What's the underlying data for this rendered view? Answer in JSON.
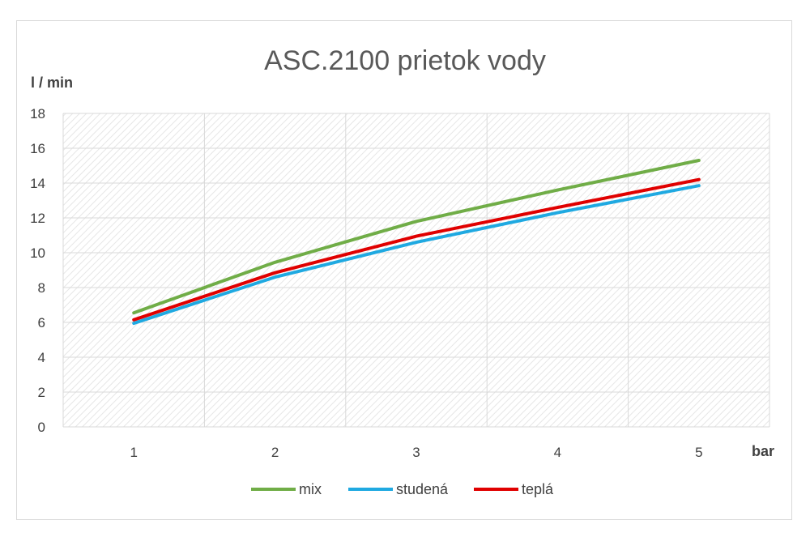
{
  "chart_data": {
    "type": "line",
    "title": "ASC.2100 prietok vody",
    "ylabel": "l / min",
    "xlabel": "bar",
    "categories": [
      "1",
      "2",
      "3",
      "4",
      "5"
    ],
    "ylim": [
      0,
      18
    ],
    "yticks": [
      "0",
      "2",
      "4",
      "6",
      "8",
      "10",
      "12",
      "14",
      "16",
      "18"
    ],
    "grid": true,
    "legend_position": "bottom",
    "series": [
      {
        "name": "mix",
        "color": "#70ad47",
        "values": [
          6.55,
          9.45,
          11.8,
          13.6,
          15.3
        ]
      },
      {
        "name": "studená",
        "color": "#1fa9e1",
        "values": [
          5.95,
          8.6,
          10.6,
          12.3,
          13.85
        ]
      },
      {
        "name": "teplá",
        "color": "#e00000",
        "values": [
          6.15,
          8.85,
          10.95,
          12.6,
          14.2
        ]
      }
    ]
  }
}
